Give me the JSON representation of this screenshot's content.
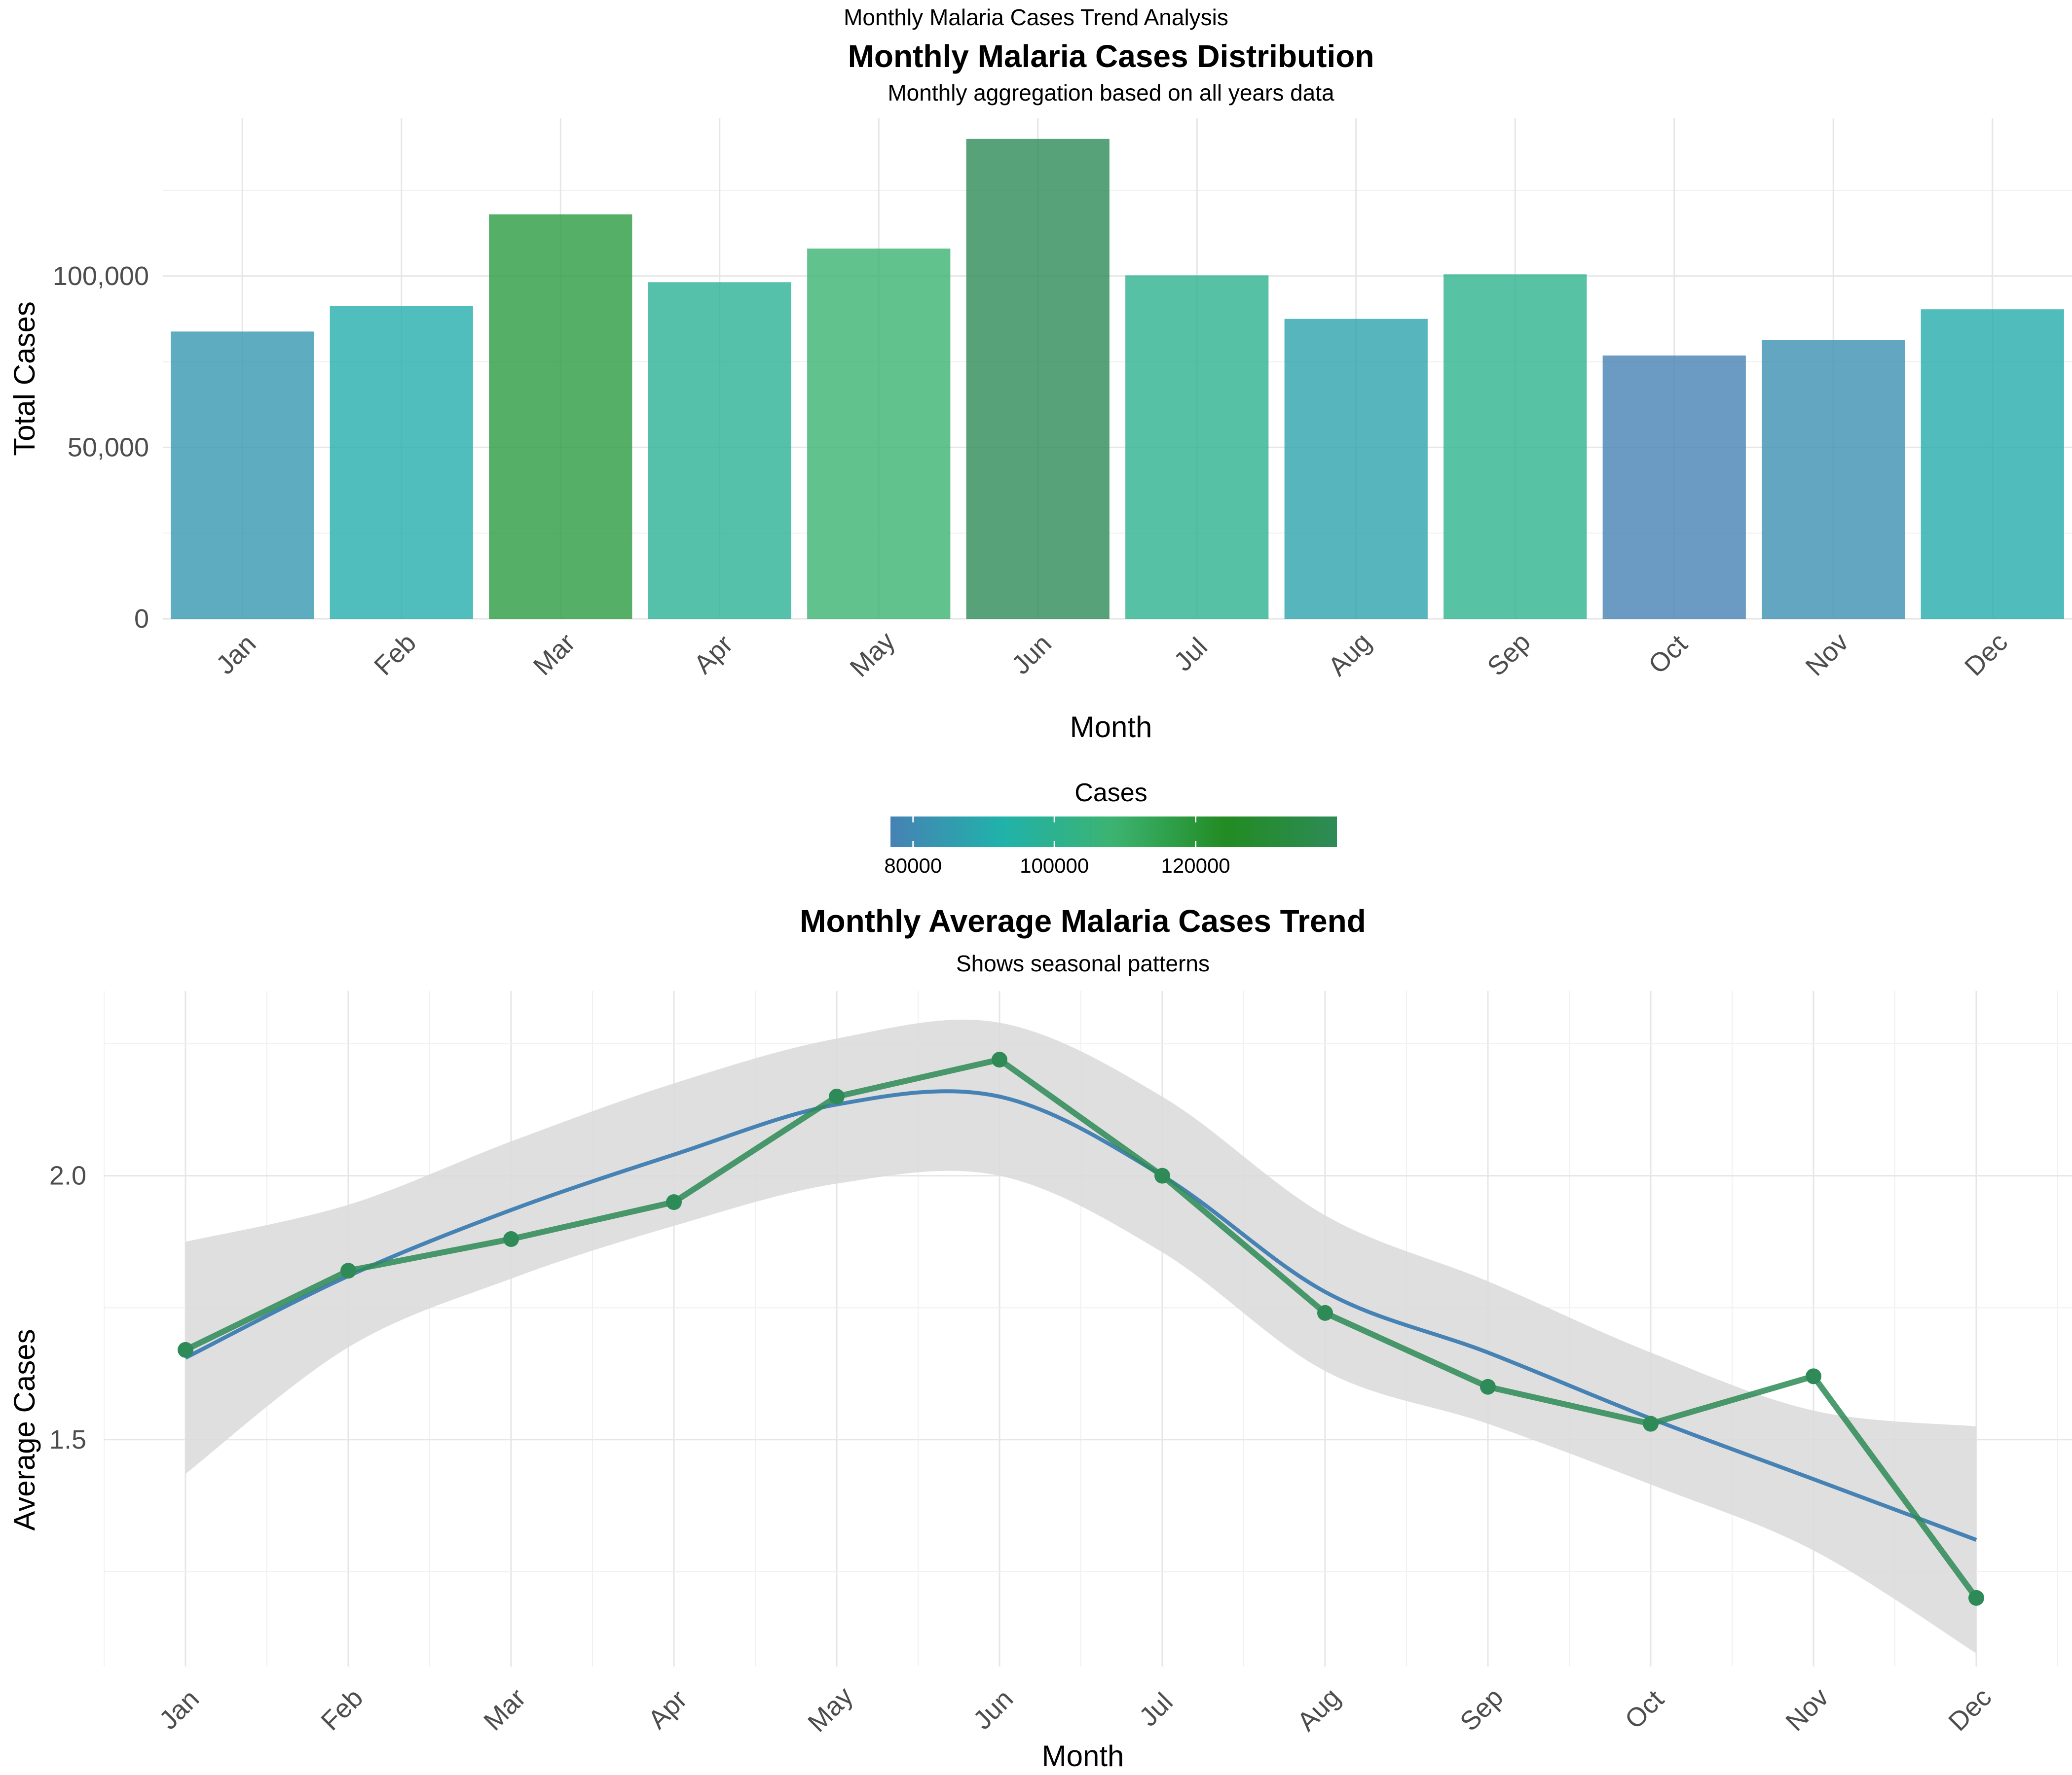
{
  "page": {
    "title": "Monthly Malaria Cases Trend Analysis"
  },
  "chart_data": [
    {
      "type": "bar",
      "title": "Monthly Malaria Cases Distribution",
      "subtitle": "Monthly aggregation based on all years data",
      "xlabel": "Month",
      "ylabel": "Total Cases",
      "categories": [
        "Jan",
        "Feb",
        "Mar",
        "Apr",
        "May",
        "Jun",
        "Jul",
        "Aug",
        "Sep",
        "Oct",
        "Nov",
        "Dec"
      ],
      "values": [
        83800,
        91200,
        118000,
        98200,
        108000,
        140000,
        100200,
        87500,
        100500,
        76800,
        81300,
        90300
      ],
      "ylim": [
        0,
        146000
      ],
      "yticks": [
        0,
        50000,
        100000
      ],
      "ytick_labels": [
        "0",
        "50,000",
        "100,000"
      ],
      "grid": true,
      "legend": {
        "title": "Cases",
        "type": "colorbar",
        "placement": "bottom",
        "range": [
          76800,
          140000
        ],
        "ticks": [
          80000,
          100000,
          120000
        ],
        "tick_labels": [
          "80000",
          "100000",
          "120000"
        ],
        "colors": [
          "#4682B4",
          "#20B2AA",
          "#3CB371",
          "#228B22",
          "#2E8B57"
        ]
      }
    },
    {
      "type": "line",
      "title": "Monthly Average Malaria Cases Trend",
      "subtitle": "Shows seasonal patterns",
      "xlabel": "Month",
      "ylabel": "Average Cases",
      "categories": [
        "Jan",
        "Feb",
        "Mar",
        "Apr",
        "May",
        "Jun",
        "Jul",
        "Aug",
        "Sep",
        "Oct",
        "Nov",
        "Dec"
      ],
      "ylim": [
        1.07,
        2.35
      ],
      "yticks": [
        1.5,
        2.0
      ],
      "ytick_labels": [
        "1.5",
        "2.0"
      ],
      "grid": true,
      "series": [
        {
          "role": "observed",
          "color": "#2E8B57",
          "values": [
            1.67,
            1.82,
            1.88,
            1.95,
            2.15,
            2.22,
            2.0,
            1.74,
            1.6,
            1.53,
            1.62,
            1.2
          ]
        },
        {
          "role": "smoothed trend",
          "color": "#4682B4",
          "values": [
            1.655,
            1.81,
            1.935,
            2.04,
            2.135,
            2.15,
            2.0,
            1.78,
            1.665,
            1.54,
            1.425,
            1.31
          ]
        },
        {
          "role": "confidence band",
          "color": "#d9d9d9",
          "lower": [
            1.435,
            1.675,
            1.805,
            1.905,
            1.985,
            2.0,
            1.855,
            1.63,
            1.53,
            1.415,
            1.29,
            1.095
          ],
          "upper": [
            1.875,
            1.945,
            2.065,
            2.175,
            2.26,
            2.29,
            2.15,
            1.925,
            1.8,
            1.665,
            1.555,
            1.525
          ]
        }
      ]
    }
  ]
}
